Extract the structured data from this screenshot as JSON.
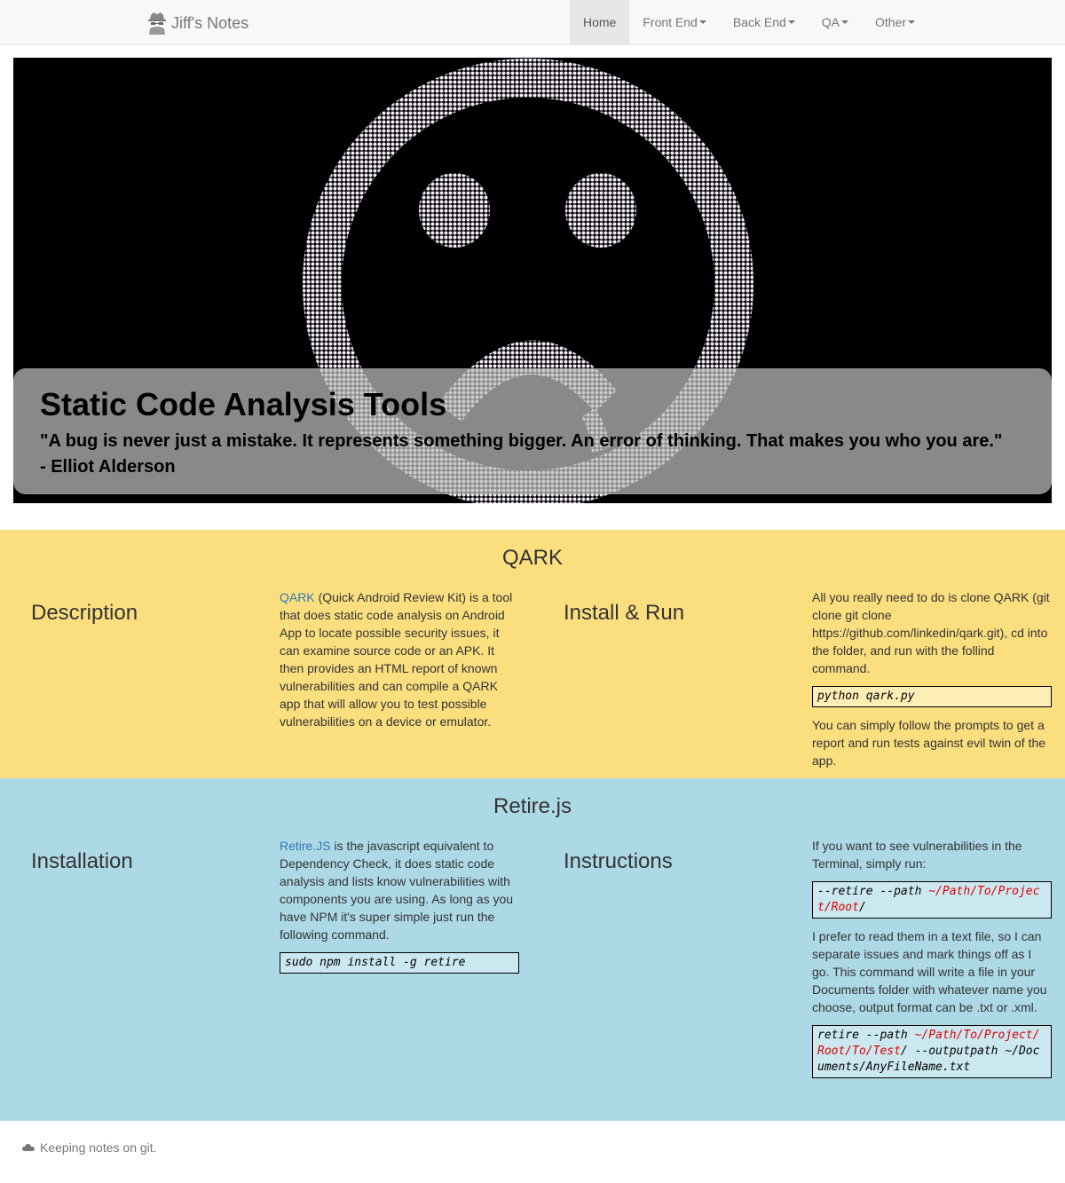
{
  "navbar": {
    "brand": "Jiff's Notes",
    "items": [
      {
        "label": "Home"
      },
      {
        "label": "Front End"
      },
      {
        "label": "Back End"
      },
      {
        "label": "QA"
      },
      {
        "label": "Other"
      }
    ]
  },
  "hero": {
    "title": "Static Code Analysis Tools",
    "quote": "\"A bug is never just a mistake. It represents something bigger. An error of thinking. That makes you who you are.\"",
    "author": "- Elliot Alderson"
  },
  "qark": {
    "title": "QARK",
    "description_heading": "Description",
    "description_link": "QARK",
    "description_text": " (Quick Android Review Kit) is a tool that does static code analysis on Android App to locate possible security issues, it can examine source code or an APK. It then provides an HTML report of known vulnerabilities and can compile a QARK app that will allow you to test possible vulnerabilities on a device or emulator.",
    "install_heading": "Install & Run",
    "install_text": "All you really need to do is clone QARK (git clone git clone https://github.com/linkedin/qark.git), cd into the folder, and run with the follind command.",
    "install_code": "python qark.py",
    "install_after": "You can simply follow the prompts to get a report and run tests against evil twin of the app."
  },
  "retire": {
    "title": "Retire.js",
    "installation_heading": "Installation",
    "installation_link": "Retire.JS",
    "installation_text": " is the javascript equivalent to Dependency Check, it does static code analysis and lists know vulnerabilities with components you are using. As long as you have NPM it's super simple just run the following command.",
    "installation_code": "sudo npm install -g retire",
    "instructions_heading": "Instructions",
    "instructions_text1": "If you want to see vulnerabilities in the Terminal, simply run:",
    "code1_prefix": "--retire --path ",
    "code1_path": "~/Path/To/Project/Root",
    "code1_suffix": "/",
    "instructions_text2": "I prefer to read them in a text file, so I can separate issues and mark things off as I go. This command will write a file in your Documents folder with whatever name you choose, output format can be .txt or .xml.",
    "code2_prefix": "retire --path ",
    "code2_path": "~/Path/To/Project/Root/To/Test",
    "code2_suffix": "/ --outputpath ~/Documents/AnyFileName.txt"
  },
  "footer": {
    "text": "Keeping notes on git."
  },
  "colors": {
    "qark_bg": "#fbdf7f",
    "retire_bg": "#add8e6",
    "link": "#337ab7"
  }
}
